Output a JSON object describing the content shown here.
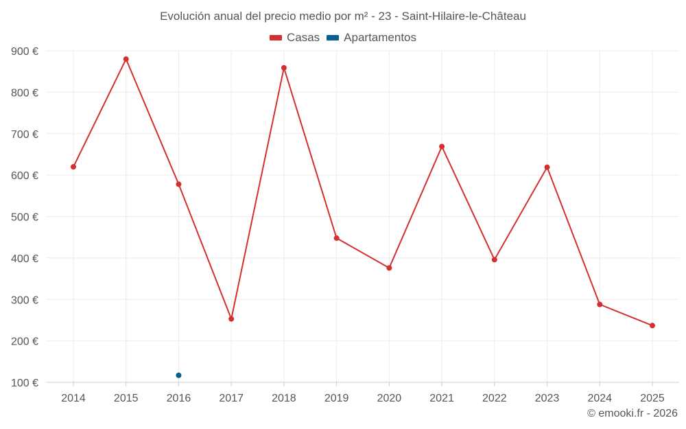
{
  "chart_data": {
    "type": "line",
    "title": "Evolución anual del precio medio por m² - 23 - Saint-Hilaire-le-Château",
    "categories": [
      "2014",
      "2015",
      "2016",
      "2017",
      "2018",
      "2019",
      "2020",
      "2021",
      "2022",
      "2023",
      "2024",
      "2025"
    ],
    "series": [
      {
        "name": "Casas",
        "color": "#d32f2f",
        "values": [
          620,
          880,
          578,
          253,
          859,
          448,
          376,
          669,
          396,
          619,
          288,
          237
        ]
      },
      {
        "name": "Apartamentos",
        "color": "#0b5e91",
        "values": [
          null,
          null,
          117,
          null,
          null,
          null,
          null,
          null,
          null,
          null,
          null,
          null
        ]
      }
    ],
    "ylim": [
      100,
      900
    ],
    "yticks": [
      100,
      200,
      300,
      400,
      500,
      600,
      700,
      800,
      900
    ],
    "ytick_labels": [
      "100 €",
      "200 €",
      "300 €",
      "400 €",
      "500 €",
      "600 €",
      "700 €",
      "800 €",
      "900 €"
    ],
    "grid": true,
    "legend_position": "top-center"
  },
  "credit": "© emooki.fr - 2026"
}
